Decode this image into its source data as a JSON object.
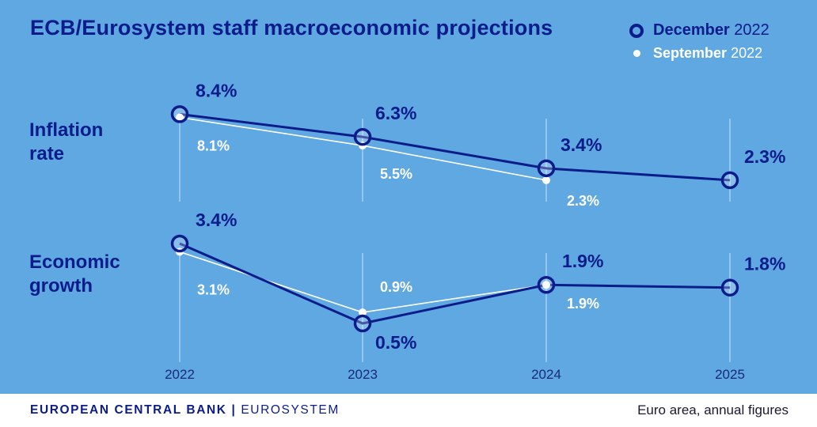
{
  "header": {
    "title": "ECB/Eurosystem staff macroeconomic projections"
  },
  "legend": {
    "december": {
      "name": "December",
      "year": "2022"
    },
    "september": {
      "name": "September",
      "year": "2022"
    }
  },
  "labels": {
    "inflation_line1": "Inflation",
    "inflation_line2": "rate",
    "growth_line1": "Economic",
    "growth_line2": "growth"
  },
  "chart_data": [
    {
      "type": "line",
      "title": "Inflation rate",
      "unit": "%",
      "ylim": [
        2.0,
        8.5
      ],
      "x": [
        "2022",
        "2023",
        "2024",
        "2025"
      ],
      "series": [
        {
          "name": "December 2022",
          "values": [
            8.4,
            6.3,
            3.4,
            2.3
          ],
          "labels": [
            "8.4%",
            "6.3%",
            "3.4%",
            "2.3%"
          ]
        },
        {
          "name": "September 2022",
          "values": [
            8.1,
            5.5,
            2.3,
            null
          ],
          "labels": [
            "8.1%",
            "5.5%",
            "2.3%",
            null
          ]
        }
      ]
    },
    {
      "type": "line",
      "title": "Economic growth",
      "unit": "%",
      "ylim": [
        0.5,
        3.4
      ],
      "x": [
        "2022",
        "2023",
        "2024",
        "2025"
      ],
      "series": [
        {
          "name": "December 2022",
          "values": [
            3.4,
            0.5,
            1.9,
            1.8
          ],
          "labels": [
            "3.4%",
            "0.5%",
            "1.9%",
            "1.8%"
          ]
        },
        {
          "name": "September 2022",
          "values": [
            3.1,
            0.9,
            1.9,
            null
          ],
          "labels": [
            "3.1%",
            "0.9%",
            "1.9%",
            null
          ]
        }
      ]
    }
  ],
  "footer": {
    "org": "EUROPEAN CENTRAL BANK",
    "system": "EUROSYSTEM",
    "note": "Euro area, annual figures"
  },
  "colors": {
    "background": "#5fa8e2",
    "december": "#0c1c8a",
    "september": "#ffffff"
  }
}
